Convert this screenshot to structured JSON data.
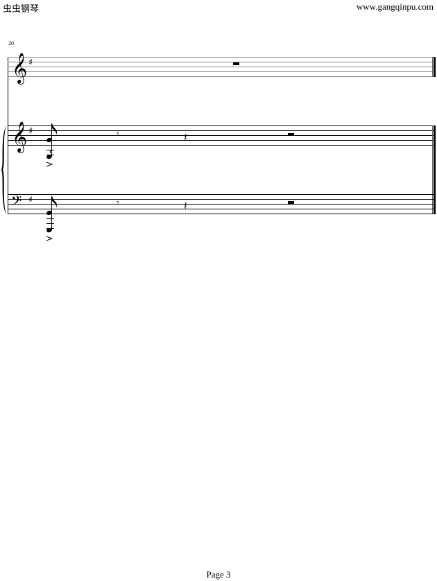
{
  "header": {
    "left_text": "虫虫钢琴",
    "right_text": "www.gangqinpu.com"
  },
  "score": {
    "measure_number": "20",
    "key_signature": "G major (1 sharp)",
    "staves": [
      {
        "clef": "treble",
        "content": [
          "whole-rest"
        ]
      },
      {
        "clef": "treble",
        "content": [
          "eighth-chord-accent",
          "eighth-rest",
          "quarter-rest",
          "half-rest"
        ]
      },
      {
        "clef": "bass",
        "content": [
          "eighth-chord-accent",
          "eighth-rest",
          "quarter-rest",
          "half-rest"
        ]
      }
    ],
    "ending": "final-barline"
  },
  "footer": {
    "page_label": "Page 3"
  }
}
